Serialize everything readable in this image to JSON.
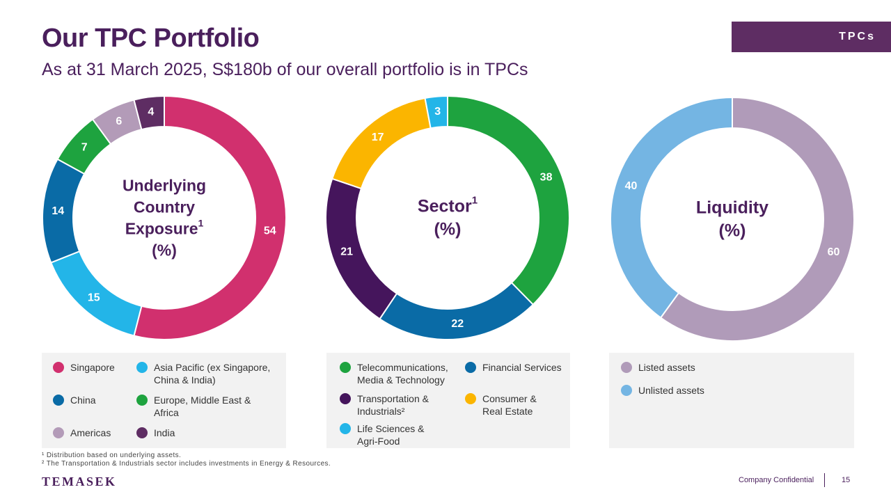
{
  "header": {
    "title": "Our TPC Portfolio",
    "subtitle": "As at 31 March 2025, S$180b of our overall portfolio is in TPCs",
    "tag": "TPCs"
  },
  "chart_data": [
    {
      "type": "pie",
      "center_label_lines": [
        "Underlying",
        "Country",
        "Exposure",
        "(%)"
      ],
      "center_superscript": "1",
      "categories": [
        "Singapore",
        "Asia Pacific (ex Singapore, China & India)",
        "China",
        "Europe, Middle East & Africa",
        "Americas",
        "India"
      ],
      "values": [
        54,
        15,
        14,
        7,
        6,
        4
      ],
      "colors": [
        "#d1306e",
        "#23b5e8",
        "#0a6ba6",
        "#1ea33f",
        "#b39bb8",
        "#5e2d63"
      ],
      "unit": "%"
    },
    {
      "type": "pie",
      "center_label_lines": [
        "Sector",
        "(%)"
      ],
      "center_superscript": "1",
      "categories": [
        "Telecommunications, Media & Technology",
        "Financial Services",
        "Transportation & Industrials",
        "Consumer & Real Estate",
        "Life Sciences & Agri-Food"
      ],
      "values": [
        38,
        22,
        21,
        17,
        3
      ],
      "colors": [
        "#1ea33f",
        "#0a6ba6",
        "#45155c",
        "#fbb500",
        "#23b5e8"
      ],
      "unit": "%"
    },
    {
      "type": "pie",
      "center_label_lines": [
        "Liquidity",
        "(%)"
      ],
      "center_superscript": "",
      "categories": [
        "Listed assets",
        "Unlisted assets"
      ],
      "values": [
        60,
        40
      ],
      "colors": [
        "#b09bb9",
        "#74b5e3"
      ],
      "unit": "%"
    }
  ],
  "legends": {
    "country": [
      {
        "label": "Singapore",
        "color": "#d1306e"
      },
      {
        "label": "Asia Pacific (ex Singapore,\nChina & India)",
        "color": "#23b5e8"
      },
      {
        "label": "China",
        "color": "#0a6ba6"
      },
      {
        "label": "Europe, Middle East &\nAfrica",
        "color": "#1ea33f"
      },
      {
        "label": "Americas",
        "color": "#b39bb8"
      },
      {
        "label": "India",
        "color": "#5e2d63"
      }
    ],
    "sector": [
      {
        "label": "Telecommunications,\nMedia & Technology",
        "color": "#1ea33f"
      },
      {
        "label": "Financial Services",
        "color": "#0a6ba6"
      },
      {
        "label": "Transportation &\nIndustrials²",
        "color": "#45155c"
      },
      {
        "label": "Consumer &\nReal Estate",
        "color": "#fbb500"
      },
      {
        "label": "Life Sciences &\nAgri-Food",
        "color": "#23b5e8"
      }
    ],
    "liquidity": [
      {
        "label": "Listed assets",
        "color": "#b09bb9"
      },
      {
        "label": "Unlisted assets",
        "color": "#74b5e3"
      }
    ]
  },
  "footnotes": {
    "note1": "¹ Distribution based on underlying assets.",
    "note2": "² The Transportation & Industrials sector includes investments in Energy & Resources."
  },
  "footer": {
    "logo": "TEMASEK",
    "confidential": "Company Confidential",
    "page": "15"
  }
}
